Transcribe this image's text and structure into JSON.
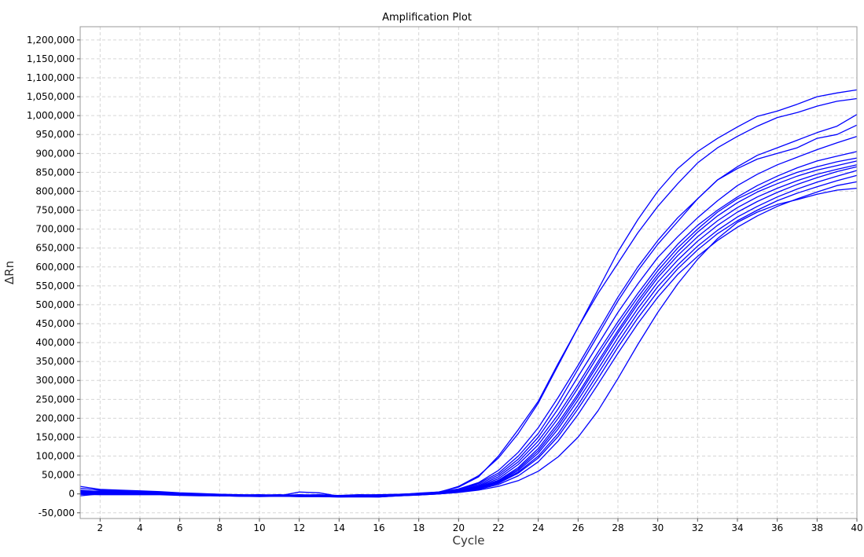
{
  "chart_data": {
    "type": "line",
    "title": "Amplification Plot",
    "xlabel": "Cycle",
    "ylabel": "ΔRn",
    "xlim": [
      1,
      40
    ],
    "ylim": [
      -65000,
      1235000
    ],
    "x_ticks": [
      2,
      4,
      6,
      8,
      10,
      12,
      14,
      16,
      18,
      20,
      22,
      24,
      26,
      28,
      30,
      32,
      34,
      36,
      38,
      40
    ],
    "x_tick_labels": [
      "2",
      "4",
      "6",
      "8",
      "10",
      "12",
      "14",
      "16",
      "18",
      "20",
      "22",
      "24",
      "26",
      "28",
      "30",
      "32",
      "34",
      "36",
      "38",
      "40"
    ],
    "y_ticks": [
      -50000,
      0,
      50000,
      100000,
      150000,
      200000,
      250000,
      300000,
      350000,
      400000,
      450000,
      500000,
      550000,
      600000,
      650000,
      700000,
      750000,
      800000,
      850000,
      900000,
      950000,
      1000000,
      1050000,
      1100000,
      1150000,
      1200000
    ],
    "y_tick_labels": [
      "-50,000",
      "0",
      "50,000",
      "100,000",
      "150,000",
      "200,000",
      "250,000",
      "300,000",
      "350,000",
      "400,000",
      "450,000",
      "500,000",
      "550,000",
      "600,000",
      "650,000",
      "700,000",
      "750,000",
      "800,000",
      "850,000",
      "900,000",
      "950,000",
      "1,000,000",
      "1,050,000",
      "1,100,000",
      "1,150,000",
      "1,200,000"
    ],
    "grid": true,
    "legend": "none",
    "line_color": "#0000ff",
    "x": [
      1,
      2,
      3,
      4,
      5,
      6,
      7,
      8,
      9,
      10,
      11,
      12,
      13,
      14,
      15,
      16,
      17,
      18,
      19,
      20,
      21,
      22,
      23,
      24,
      25,
      26,
      27,
      28,
      29,
      30,
      31,
      32,
      33,
      34,
      35,
      36,
      37,
      38,
      39,
      40
    ],
    "series": [
      {
        "values": [
          20000,
          12000,
          10000,
          8000,
          6000,
          3000,
          1000,
          -1000,
          -3000,
          -2000,
          -4000,
          -3000,
          -2000,
          -5000,
          -3000,
          -2000,
          -1000,
          1000,
          5000,
          18000,
          45000,
          100000,
          170000,
          245000,
          345000,
          440000,
          540000,
          640000,
          725000,
          800000,
          860000,
          905000,
          940000,
          970000,
          998000,
          1012000,
          1030000,
          1050000,
          1060000,
          1068000
        ]
      },
      {
        "values": [
          15000,
          10000,
          8000,
          6000,
          5000,
          2000,
          0,
          -1000,
          -2000,
          -3000,
          -2000,
          -4000,
          -3000,
          -4000,
          -2000,
          -3000,
          -1000,
          1000,
          4000,
          20000,
          48000,
          95000,
          160000,
          240000,
          340000,
          440000,
          530000,
          610000,
          690000,
          760000,
          820000,
          875000,
          915000,
          945000,
          972000,
          995000,
          1008000,
          1025000,
          1038000,
          1045000
        ]
      },
      {
        "values": [
          -5000,
          0,
          2000,
          3000,
          4000,
          1000,
          -1000,
          -3000,
          -5000,
          -4000,
          -5000,
          5000,
          3000,
          -6000,
          -4000,
          -5000,
          -2000,
          0,
          3000,
          12000,
          28000,
          55000,
          100000,
          160000,
          240000,
          330000,
          420000,
          510000,
          590000,
          660000,
          720000,
          780000,
          830000,
          865000,
          895000,
          915000,
          935000,
          955000,
          972000,
          1003000
        ]
      },
      {
        "values": [
          5000,
          8000,
          6000,
          4000,
          3000,
          1000,
          -2000,
          -2000,
          -3000,
          -4000,
          -3000,
          -3000,
          -3000,
          -5000,
          -5000,
          -4000,
          -2000,
          2000,
          5000,
          13000,
          30000,
          62000,
          110000,
          175000,
          255000,
          340000,
          430000,
          520000,
          600000,
          670000,
          730000,
          780000,
          830000,
          860000,
          885000,
          900000,
          915000,
          940000,
          950000,
          975000
        ]
      },
      {
        "values": [
          8000,
          5000,
          4000,
          4000,
          3000,
          0,
          -1000,
          -2000,
          -4000,
          -5000,
          -4000,
          -4000,
          -3000,
          -5000,
          -4000,
          -4000,
          -2000,
          1000,
          4000,
          12000,
          25000,
          50000,
          92000,
          150000,
          225000,
          310000,
          395000,
          480000,
          555000,
          625000,
          680000,
          730000,
          775000,
          815000,
          845000,
          870000,
          890000,
          910000,
          928000,
          945000
        ]
      },
      {
        "values": [
          10000,
          6000,
          5000,
          3000,
          2000,
          0,
          -1000,
          -2000,
          -3000,
          -3000,
          -4000,
          -2000,
          -4000,
          -6000,
          -4000,
          -5000,
          -3000,
          0,
          3000,
          10000,
          22000,
          45000,
          85000,
          140000,
          210000,
          290000,
          375000,
          455000,
          530000,
          600000,
          660000,
          710000,
          750000,
          785000,
          815000,
          840000,
          862000,
          880000,
          893000,
          905000
        ]
      },
      {
        "values": [
          6000,
          4000,
          3000,
          2000,
          1000,
          -1000,
          -2000,
          -3000,
          -4000,
          -4000,
          -3000,
          -5000,
          -4000,
          -5000,
          -5000,
          -6000,
          -3000,
          -1000,
          2000,
          9000,
          20000,
          40000,
          78000,
          130000,
          200000,
          280000,
          365000,
          445000,
          520000,
          590000,
          650000,
          700000,
          745000,
          780000,
          805000,
          830000,
          850000,
          865000,
          878000,
          888000
        ]
      },
      {
        "values": [
          4000,
          3000,
          2000,
          1000,
          1000,
          -1000,
          -3000,
          -3000,
          -4000,
          -5000,
          -4000,
          -4000,
          -5000,
          -6000,
          -5000,
          -5000,
          -3000,
          0,
          2000,
          8000,
          18000,
          36000,
          70000,
          120000,
          188000,
          265000,
          350000,
          432000,
          510000,
          580000,
          640000,
          692000,
          735000,
          770000,
          798000,
          820000,
          840000,
          856000,
          868000,
          880000
        ]
      },
      {
        "values": [
          3000,
          2000,
          2000,
          1000,
          0,
          -2000,
          -3000,
          -4000,
          -5000,
          -4000,
          -5000,
          -5000,
          -5000,
          -7000,
          -6000,
          -5000,
          -3000,
          -1000,
          2000,
          8000,
          17000,
          34000,
          66000,
          114000,
          180000,
          258000,
          342000,
          425000,
          502000,
          572000,
          630000,
          680000,
          722000,
          757000,
          785000,
          808000,
          828000,
          845000,
          858000,
          870000
        ]
      },
      {
        "values": [
          2000,
          1000,
          1000,
          0,
          0,
          -2000,
          -3000,
          -4000,
          -5000,
          -5000,
          -5000,
          -6000,
          -5000,
          -6000,
          -6000,
          -6000,
          -4000,
          -1000,
          1000,
          7000,
          16000,
          32000,
          62000,
          108000,
          172000,
          248000,
          330000,
          413000,
          490000,
          560000,
          618000,
          668000,
          710000,
          745000,
          773000,
          797000,
          818000,
          836000,
          852000,
          865000
        ]
      },
      {
        "values": [
          1000,
          0,
          0,
          0,
          -1000,
          -3000,
          -4000,
          -4000,
          -5000,
          -6000,
          -5000,
          -6000,
          -6000,
          -7000,
          -6000,
          -7000,
          -4000,
          -2000,
          1000,
          6000,
          15000,
          30000,
          58000,
          100000,
          160000,
          235000,
          318000,
          400000,
          478000,
          548000,
          605000,
          655000,
          697000,
          732000,
          760000,
          785000,
          806000,
          824000,
          840000,
          855000
        ]
      },
      {
        "values": [
          0,
          -1000,
          -1000,
          -1000,
          -1000,
          -3000,
          -4000,
          -5000,
          -6000,
          -6000,
          -6000,
          -6000,
          -6000,
          -7000,
          -7000,
          -7000,
          -5000,
          -2000,
          0,
          6000,
          14000,
          28000,
          55000,
          95000,
          152000,
          225000,
          305000,
          388000,
          465000,
          535000,
          595000,
          645000,
          688000,
          722000,
          750000,
          775000,
          795000,
          812000,
          828000,
          842000
        ]
      },
      {
        "values": [
          -1000,
          -2000,
          -2000,
          -2000,
          -2000,
          -4000,
          -5000,
          -5000,
          -6000,
          -7000,
          -6000,
          -7000,
          -7000,
          -8000,
          -7000,
          -8000,
          -5000,
          -3000,
          0,
          5000,
          12000,
          25000,
          48000,
          85000,
          140000,
          210000,
          290000,
          372000,
          450000,
          520000,
          580000,
          628000,
          670000,
          705000,
          735000,
          760000,
          780000,
          798000,
          815000,
          825000
        ]
      },
      {
        "values": [
          2000,
          1000,
          0,
          0,
          -1000,
          -3000,
          -4000,
          -5000,
          -6000,
          -6000,
          -6000,
          -7000,
          -7000,
          -8000,
          -8000,
          -8000,
          -5000,
          -3000,
          0,
          4000,
          10000,
          20000,
          35000,
          60000,
          98000,
          150000,
          220000,
          305000,
          395000,
          480000,
          555000,
          620000,
          675000,
          718000,
          745000,
          765000,
          778000,
          792000,
          803000,
          808000
        ]
      }
    ]
  }
}
